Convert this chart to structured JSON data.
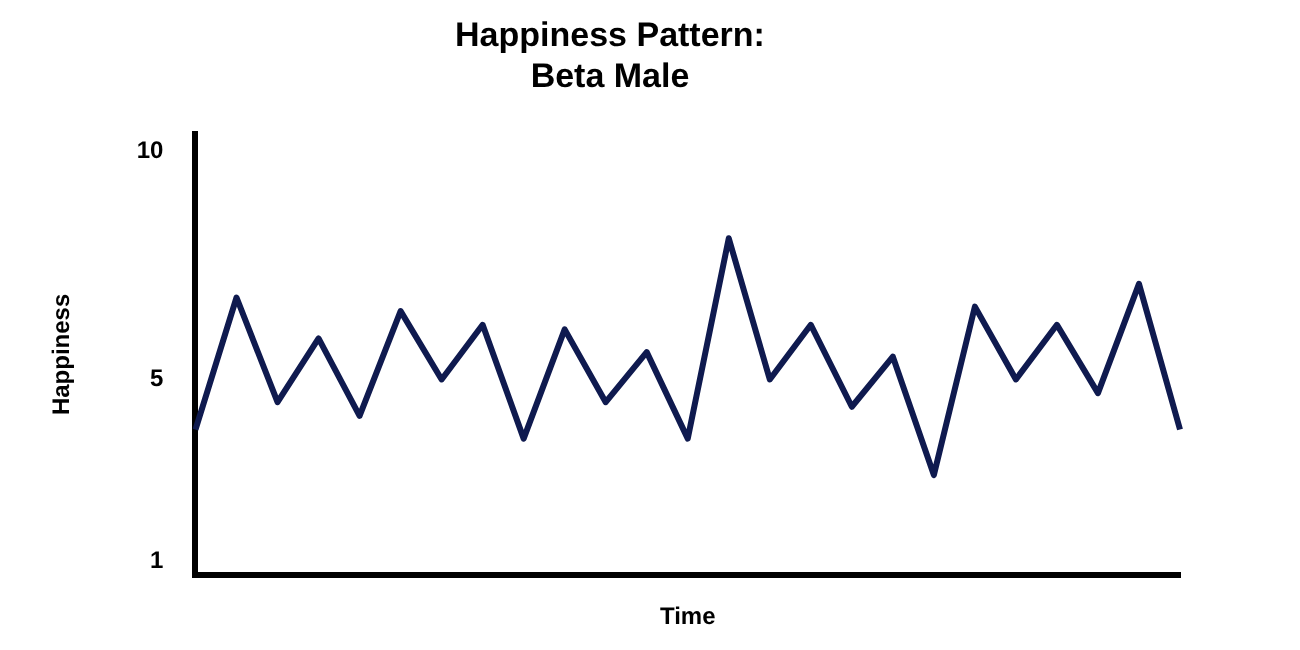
{
  "chart_data": {
    "type": "line",
    "title": "Happiness Pattern:\nBeta Male",
    "xlabel": "Time",
    "ylabel": "Happiness",
    "categories": [
      null,
      null,
      null,
      null,
      null,
      null,
      null,
      null,
      null,
      null,
      null,
      null,
      null,
      null,
      null,
      null,
      null,
      null,
      null,
      null,
      null,
      null,
      null,
      null,
      null
    ],
    "values": [
      3.9,
      6.8,
      4.5,
      5.9,
      4.2,
      6.5,
      5.0,
      6.2,
      3.7,
      6.1,
      4.5,
      5.6,
      3.7,
      8.1,
      5.0,
      6.2,
      4.4,
      5.5,
      2.9,
      6.6,
      5.0,
      6.2,
      4.7,
      7.1,
      3.9
    ],
    "color": "#0f1a4f",
    "ylim": [
      0.7,
      10.4
    ],
    "yticks": [
      1,
      5,
      10
    ],
    "grid": false,
    "legend": false,
    "marker": "none"
  }
}
